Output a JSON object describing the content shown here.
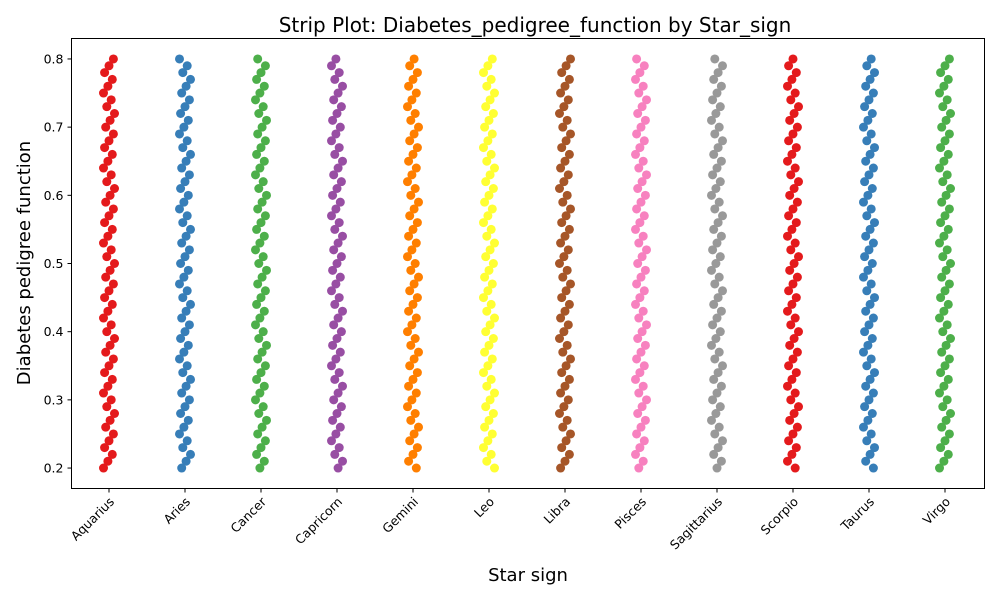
{
  "chart_data": {
    "type": "scatter",
    "subtype": "strip",
    "title": "Strip Plot: Diabetes_pedigree_function by Star_sign",
    "xlabel": "Star sign",
    "ylabel": "Diabetes pedigree function",
    "ylim": [
      0.17,
      0.83
    ],
    "yticks": [
      "0.2",
      "0.3",
      "0.4",
      "0.5",
      "0.6",
      "0.7",
      "0.8"
    ],
    "grid": false,
    "legend": "none",
    "categories": [
      "Aquarius",
      "Aries",
      "Cancer",
      "Capricorn",
      "Gemini",
      "Leo",
      "Libra",
      "Pisces",
      "Sagittarius",
      "Scorpio",
      "Taurus",
      "Virgo"
    ],
    "colors": [
      "#e41a1c",
      "#377eb8",
      "#4daf4a",
      "#984ea3",
      "#ff7f00",
      "#ffff33",
      "#a65628",
      "#f781bf",
      "#999999",
      "#e41a1c",
      "#377eb8",
      "#4daf4a"
    ],
    "series": [
      {
        "category": "Aquarius",
        "min": 0.2,
        "max": 0.8,
        "step": 0.01
      },
      {
        "category": "Aries",
        "min": 0.2,
        "max": 0.8,
        "step": 0.01
      },
      {
        "category": "Cancer",
        "min": 0.2,
        "max": 0.8,
        "step": 0.01
      },
      {
        "category": "Capricorn",
        "min": 0.2,
        "max": 0.8,
        "step": 0.01
      },
      {
        "category": "Gemini",
        "min": 0.2,
        "max": 0.8,
        "step": 0.01
      },
      {
        "category": "Leo",
        "min": 0.2,
        "max": 0.8,
        "step": 0.01
      },
      {
        "category": "Libra",
        "min": 0.2,
        "max": 0.8,
        "step": 0.01
      },
      {
        "category": "Pisces",
        "min": 0.2,
        "max": 0.8,
        "step": 0.01
      },
      {
        "category": "Sagittarius",
        "min": 0.2,
        "max": 0.8,
        "step": 0.01
      },
      {
        "category": "Scorpio",
        "min": 0.2,
        "max": 0.8,
        "step": 0.01
      },
      {
        "category": "Taurus",
        "min": 0.2,
        "max": 0.8,
        "step": 0.01
      },
      {
        "category": "Virgo",
        "min": 0.2,
        "max": 0.8,
        "step": 0.01
      }
    ]
  }
}
